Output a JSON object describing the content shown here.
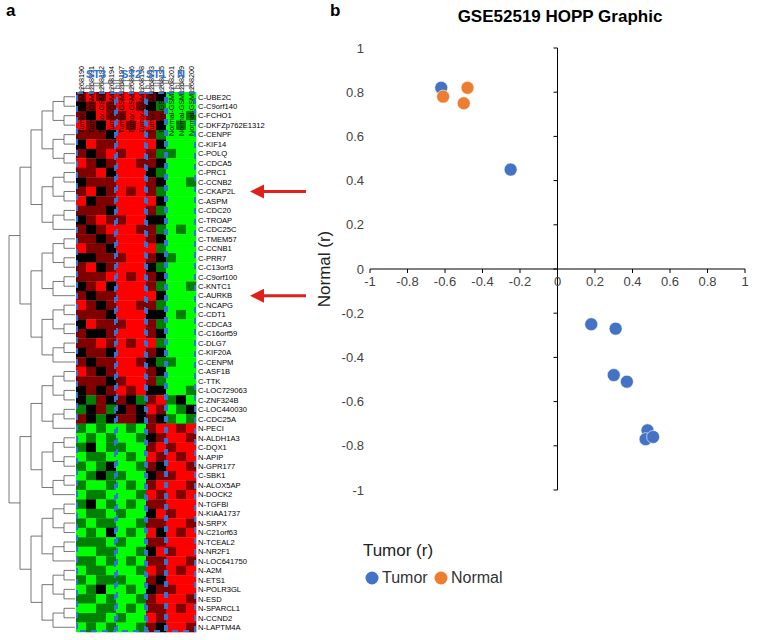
{
  "chart_data": [
    {
      "type": "heatmap",
      "panel_label": "a",
      "columns": [
        "Tumor-GSM1268190",
        "Tumor-GSM1268191",
        "Tumor-GSM1268192",
        "Tumor-GSM1268194",
        "Tumor-GSM1268197",
        "Tumor-GSM1268196",
        "Tumor-GSM1268198",
        "Tumor-GSM1268193",
        "Tumor-GSM1268195",
        "Normal-GSM1268201",
        "Normal-GSM1268199",
        "Normal-GSM1268200"
      ],
      "column_groups": [
        "ST3",
        "ST3",
        "ST3",
        "ST3",
        "ST2",
        "ST2",
        "ST2",
        "ST1",
        "ST1",
        "N",
        "N",
        "N"
      ],
      "rows": [
        "C-UBE2C",
        "C-C9orf140",
        "C-FCHO1",
        "C-DKFZp762E1312",
        "C-CENPF",
        "C-KIF14",
        "C-POLQ",
        "C-CDCA5",
        "C-PRC1",
        "C-CCNB2",
        "C-CKAP2L",
        "C-ASPM",
        "C-CDC20",
        "C-TROAP",
        "C-CDC25C",
        "C-TMEM57",
        "C-CCNB1",
        "C-PRR7",
        "C-C13orf3",
        "C-C9orf100",
        "C-KNTC1",
        "C-AURKB",
        "C-NCAPG",
        "C-CDT1",
        "C-CDCA3",
        "C-C16orf59",
        "C-DLG7",
        "C-KIF20A",
        "C-CENPM",
        "C-ASF1B",
        "C-TTK",
        "C-LOC729063",
        "C-ZNF324B",
        "C-LOC440030",
        "C-CDC25A",
        "N-PECI",
        "N-ALDH1A3",
        "C-DQX1",
        "N-APIP",
        "N-GPR177",
        "C-SBK1",
        "N-ALOX5AP",
        "N-DOCK2",
        "N-TGFBI",
        "N-KIAA1737",
        "N-SRPX",
        "N-C21orf63",
        "N-TCEAL2",
        "N-NR2F1",
        "N-LOC641750",
        "N-A2M",
        "N-ETS1",
        "N-POLR3GL",
        "N-ESD",
        "N-SPARCL1",
        "N-CCND2",
        "N-LAPTM4A"
      ],
      "cells": [
        [
          1,
          2,
          1,
          2,
          2,
          2,
          2,
          1,
          0,
          -2,
          -2,
          -2
        ],
        [
          0,
          1,
          2,
          1,
          2,
          2,
          1,
          0,
          -1,
          -2,
          -2,
          -2
        ],
        [
          1,
          0,
          2,
          1,
          1,
          2,
          2,
          1,
          1,
          -2,
          -2,
          -1
        ],
        [
          2,
          1,
          0,
          2,
          2,
          1,
          2,
          2,
          0,
          -2,
          -1,
          -2
        ],
        [
          1,
          1,
          1,
          0,
          2,
          2,
          2,
          1,
          -1,
          -2,
          -2,
          -2
        ],
        [
          0,
          2,
          1,
          1,
          2,
          2,
          2,
          2,
          0,
          -2,
          -2,
          -2
        ],
        [
          1,
          0,
          1,
          2,
          1,
          2,
          2,
          1,
          -1,
          -1,
          -2,
          -2
        ],
        [
          2,
          1,
          0,
          1,
          2,
          2,
          1,
          1,
          0,
          -2,
          -2,
          -2
        ],
        [
          1,
          1,
          2,
          0,
          2,
          2,
          2,
          0,
          -1,
          -2,
          -2,
          -2
        ],
        [
          0,
          1,
          1,
          1,
          2,
          2,
          2,
          1,
          0,
          -2,
          -2,
          -1
        ],
        [
          1,
          2,
          0,
          1,
          2,
          1,
          2,
          1,
          -1,
          -2,
          -2,
          -2
        ],
        [
          2,
          0,
          1,
          1,
          2,
          2,
          2,
          2,
          0,
          -2,
          -2,
          -2
        ],
        [
          1,
          1,
          1,
          0,
          2,
          2,
          2,
          1,
          -1,
          -2,
          -2,
          -2
        ],
        [
          0,
          1,
          2,
          1,
          1,
          2,
          2,
          0,
          0,
          -2,
          -2,
          -2
        ],
        [
          1,
          0,
          1,
          2,
          2,
          2,
          1,
          1,
          -1,
          -2,
          -1,
          -2
        ],
        [
          1,
          1,
          0,
          1,
          2,
          2,
          2,
          1,
          0,
          -2,
          -2,
          -2
        ],
        [
          2,
          1,
          1,
          0,
          2,
          2,
          2,
          2,
          -1,
          -2,
          -2,
          -2
        ],
        [
          0,
          0,
          1,
          1,
          1,
          2,
          2,
          1,
          0,
          -1,
          -2,
          -2
        ],
        [
          1,
          2,
          0,
          1,
          2,
          2,
          2,
          0,
          -1,
          -2,
          -2,
          -2
        ],
        [
          1,
          1,
          1,
          2,
          2,
          1,
          2,
          1,
          0,
          -2,
          -2,
          -2
        ],
        [
          0,
          1,
          2,
          0,
          2,
          2,
          2,
          1,
          -1,
          -2,
          -2,
          -1
        ],
        [
          1,
          0,
          1,
          1,
          2,
          2,
          2,
          2,
          0,
          -2,
          -2,
          -2
        ],
        [
          2,
          1,
          0,
          1,
          2,
          2,
          1,
          1,
          -1,
          -2,
          -2,
          -2
        ],
        [
          1,
          1,
          1,
          0,
          2,
          2,
          2,
          0,
          0,
          -2,
          -1,
          -2
        ],
        [
          0,
          2,
          1,
          1,
          1,
          2,
          2,
          1,
          -1,
          -2,
          -2,
          -2
        ],
        [
          1,
          0,
          0,
          1,
          2,
          2,
          2,
          1,
          0,
          -2,
          -2,
          -2
        ],
        [
          1,
          1,
          2,
          1,
          2,
          1,
          2,
          2,
          -1,
          -2,
          -2,
          -2
        ],
        [
          0,
          1,
          1,
          0,
          2,
          2,
          2,
          1,
          0,
          -2,
          -2,
          -2
        ],
        [
          1,
          0,
          1,
          1,
          2,
          2,
          1,
          0,
          -1,
          -1,
          -2,
          -2
        ],
        [
          2,
          1,
          0,
          1,
          2,
          2,
          2,
          1,
          0,
          -2,
          -2,
          -2
        ],
        [
          1,
          1,
          1,
          0,
          1,
          2,
          2,
          1,
          -1,
          -2,
          -2,
          -2
        ],
        [
          0,
          1,
          0,
          1,
          2,
          1,
          2,
          0,
          0,
          -2,
          -2,
          -1
        ],
        [
          0,
          -1,
          1,
          0,
          1,
          0,
          -1,
          1,
          2,
          -1,
          0,
          -2
        ],
        [
          -1,
          0,
          1,
          -1,
          0,
          1,
          0,
          2,
          1,
          -2,
          -1,
          0
        ],
        [
          1,
          0,
          -1,
          0,
          1,
          1,
          0,
          1,
          0,
          -1,
          -2,
          -1
        ],
        [
          -1,
          -2,
          -1,
          -2,
          -2,
          -1,
          -2,
          1,
          2,
          2,
          1,
          2
        ],
        [
          -2,
          -1,
          -2,
          -1,
          -2,
          -2,
          -1,
          0,
          1,
          2,
          2,
          1
        ],
        [
          -1,
          0,
          -2,
          -1,
          -1,
          -2,
          -2,
          1,
          2,
          1,
          2,
          2
        ],
        [
          -2,
          -1,
          -1,
          -2,
          -2,
          -1,
          -2,
          2,
          1,
          2,
          1,
          2
        ],
        [
          -1,
          -2,
          -1,
          0,
          -2,
          -2,
          -1,
          1,
          0,
          2,
          2,
          1
        ],
        [
          -2,
          -1,
          0,
          -1,
          -1,
          -2,
          -2,
          0,
          1,
          1,
          2,
          2
        ],
        [
          -1,
          -2,
          -2,
          -1,
          -2,
          -1,
          -2,
          1,
          2,
          2,
          2,
          1
        ],
        [
          -2,
          -1,
          -1,
          -2,
          -2,
          -2,
          -1,
          2,
          1,
          2,
          1,
          2
        ],
        [
          -1,
          0,
          -2,
          -1,
          -2,
          -1,
          -2,
          1,
          1,
          2,
          2,
          2
        ],
        [
          -2,
          -1,
          -1,
          -2,
          -1,
          -2,
          -2,
          0,
          2,
          1,
          2,
          2
        ],
        [
          -1,
          -2,
          -1,
          -1,
          -2,
          -2,
          -1,
          1,
          1,
          2,
          2,
          1
        ],
        [
          -2,
          -1,
          -2,
          0,
          -2,
          -1,
          -2,
          2,
          0,
          2,
          1,
          2
        ],
        [
          -1,
          -1,
          -1,
          -2,
          -1,
          -2,
          -2,
          1,
          1,
          2,
          2,
          2
        ],
        [
          -2,
          -2,
          -1,
          -1,
          -2,
          -2,
          -1,
          0,
          2,
          1,
          2,
          2
        ],
        [
          -1,
          -1,
          -2,
          -1,
          -2,
          -1,
          -2,
          1,
          1,
          2,
          2,
          1
        ],
        [
          -2,
          -1,
          -1,
          -2,
          -2,
          -2,
          -1,
          2,
          1,
          2,
          1,
          2
        ],
        [
          -1,
          -2,
          -1,
          -1,
          -1,
          -2,
          -2,
          1,
          0,
          2,
          2,
          2
        ],
        [
          -2,
          -1,
          0,
          -2,
          -2,
          -1,
          -2,
          0,
          1,
          1,
          2,
          2
        ],
        [
          -1,
          -1,
          -2,
          -1,
          -2,
          -2,
          -1,
          1,
          2,
          2,
          2,
          1
        ],
        [
          -2,
          -2,
          -1,
          -1,
          -2,
          -1,
          -2,
          1,
          1,
          2,
          1,
          2
        ],
        [
          -1,
          -1,
          -1,
          -2,
          -1,
          -2,
          -2,
          2,
          1,
          2,
          2,
          2
        ],
        [
          -2,
          -1,
          -2,
          -1,
          -2,
          -2,
          -1,
          1,
          0,
          2,
          2,
          1
        ]
      ],
      "annotations": [
        {
          "arrow_to": "C-CKAP2L"
        },
        {
          "arrow_to": "C-AURKB"
        }
      ]
    },
    {
      "type": "scatter",
      "panel_label": "b",
      "title": "GSE52519 HOPP Graphic",
      "x_label": "Tumor (r)",
      "y_label": "Normal (r)",
      "xlim": [
        -1,
        1
      ],
      "ylim": [
        -1,
        1
      ],
      "xticks": [
        -1,
        -0.8,
        -0.6,
        -0.4,
        -0.2,
        0,
        0.2,
        0.4,
        0.6,
        0.8,
        1
      ],
      "yticks": [
        -1,
        -0.8,
        -0.6,
        -0.4,
        -0.2,
        0,
        0.2,
        0.4,
        0.6,
        0.8,
        1
      ],
      "legend": "bottom",
      "series": [
        {
          "name": "Tumor",
          "color": "#4472c4",
          "marker": "circle",
          "x": [
            -0.62,
            -0.25,
            0.18,
            0.31,
            0.3,
            0.37,
            0.48,
            0.47,
            0.51
          ],
          "values": [
            0.82,
            0.45,
            -0.25,
            -0.27,
            -0.48,
            -0.51,
            -0.73,
            -0.77,
            -0.76
          ]
        },
        {
          "name": "Normal",
          "color": "#ed7d31",
          "marker": "circle",
          "x": [
            -0.61,
            -0.48,
            -0.5
          ],
          "values": [
            0.78,
            0.82,
            0.75
          ]
        }
      ]
    }
  ]
}
